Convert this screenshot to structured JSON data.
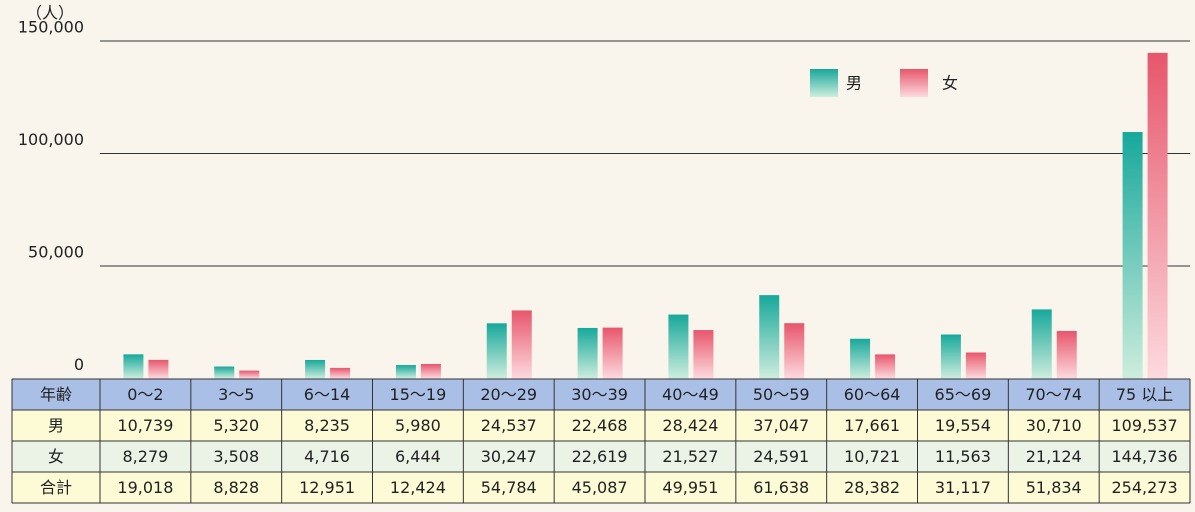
{
  "chart_data": {
    "type": "bar",
    "y_label": "（人）",
    "categories": [
      "0～2",
      "3～5",
      "6～14",
      "15～19",
      "20～29",
      "30～39",
      "40～49",
      "50～59",
      "60～64",
      "65～69",
      "70～74",
      "75 以上"
    ],
    "series": [
      {
        "name": "男",
        "color": "#17a89b",
        "light": "#cdeddd",
        "values": [
          10739,
          5320,
          8235,
          5980,
          24537,
          22468,
          28424,
          37047,
          17661,
          19554,
          30710,
          109537
        ],
        "value_labels": [
          "10,739",
          "5,320",
          "8,235",
          "5,980",
          "24,537",
          "22,468",
          "28,424",
          "37,047",
          "17,661",
          "19,554",
          "30,710",
          "109,537"
        ]
      },
      {
        "name": "女",
        "color": "#e7566c",
        "light": "#fcdade",
        "values": [
          8279,
          3508,
          4716,
          6444,
          30247,
          22619,
          21527,
          24591,
          10721,
          11563,
          21124,
          144736
        ],
        "value_labels": [
          "8,279",
          "3,508",
          "4,716",
          "6,444",
          "30,247",
          "22,619",
          "21,527",
          "24,591",
          "10,721",
          "11,563",
          "21,124",
          "144,736"
        ]
      }
    ],
    "table": {
      "header": "年齢",
      "total_name": "合計",
      "totals": [
        "19,018",
        "8,828",
        "12,951",
        "12,424",
        "54,784",
        "45,087",
        "49,951",
        "61,638",
        "28,382",
        "31,117",
        "51,834",
        "254,273"
      ]
    },
    "ylim": [
      0,
      150000
    ],
    "yticks": [
      0,
      {
        "value": 50000,
        "label": "50,000"
      },
      {
        "value": 100000,
        "label": "100,000"
      },
      {
        "value": 150000,
        "label": "150,000"
      }
    ],
    "grid": true,
    "legend": "top-right"
  }
}
